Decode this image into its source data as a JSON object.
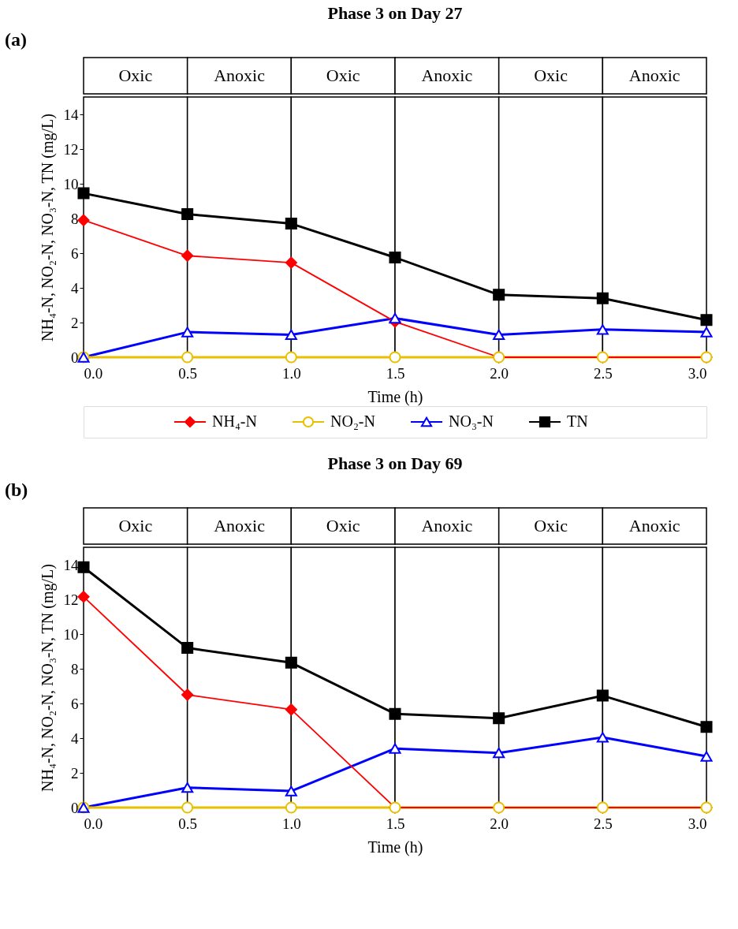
{
  "chart_data": [
    {
      "type": "line",
      "title": "Phase 3 on Day 27",
      "xlabel": "Time (h)",
      "ylabel": "NH₄-N, NO₂-N, NO₃-N, TN (mg/L)",
      "annotations": [
        "(a)"
      ],
      "x": [
        0,
        0.5,
        1.0,
        1.5,
        2.0,
        2.5,
        3.0
      ],
      "series": [
        {
          "name": "NH₄-N",
          "color": "#ff0000",
          "marker": "diamond",
          "values": [
            7.9,
            5.85,
            5.45,
            2.05,
            0,
            0,
            0
          ]
        },
        {
          "name": "NO₂-N",
          "color": "#e8c000",
          "marker": "circle",
          "values": [
            0,
            0,
            0,
            0,
            0,
            0,
            0
          ]
        },
        {
          "name": "NO₃-N",
          "color": "#0000ff",
          "marker": "triangle",
          "values": [
            0,
            1.45,
            1.3,
            2.25,
            1.3,
            1.6,
            1.45
          ]
        },
        {
          "name": "TN",
          "color": "#000000",
          "marker": "square",
          "values": [
            9.45,
            8.25,
            7.7,
            5.75,
            3.6,
            3.4,
            2.15
          ]
        }
      ],
      "xlim": [
        0,
        3
      ],
      "xticks": [
        {
          "value": 0,
          "label": "0.0"
        },
        {
          "value": 0.5,
          "label": "0.5"
        },
        {
          "value": 1,
          "label": "1.0"
        },
        {
          "value": 1.5,
          "label": "1.5"
        },
        {
          "value": 2,
          "label": "2.0"
        },
        {
          "value": 2.5,
          "label": "2.5"
        },
        {
          "value": 3,
          "label": "3.0"
        }
      ],
      "ylim": [
        0,
        15
      ],
      "yticks": [
        0,
        2,
        4,
        6,
        8,
        10,
        12,
        14
      ],
      "bands": [
        {
          "axis": "x",
          "from": 0,
          "to": 0.5,
          "label": "Oxic"
        },
        {
          "axis": "x",
          "from": 0.5,
          "to": 1,
          "label": "Anoxic"
        },
        {
          "axis": "x",
          "from": 1,
          "to": 1.5,
          "label": "Oxic"
        },
        {
          "axis": "x",
          "from": 1.5,
          "to": 2,
          "label": "Anoxic"
        },
        {
          "axis": "x",
          "from": 2,
          "to": 2.5,
          "label": "Oxic"
        },
        {
          "axis": "x",
          "from": 2.5,
          "to": 3,
          "label": "Anoxic"
        }
      ],
      "legend": "bottom"
    },
    {
      "type": "line",
      "title": "Phase 3 on Day 69",
      "xlabel": "Time (h)",
      "ylabel": "NH₄-N, NO₂-N, NO₃-N, TN (mg/L)",
      "annotations": [
        "(b)"
      ],
      "x": [
        0,
        0.5,
        1.0,
        1.5,
        2.0,
        2.5,
        3.0
      ],
      "series": [
        {
          "color": "#ff0000",
          "marker": "diamond",
          "values": [
            12.15,
            6.5,
            5.65,
            0,
            0,
            0,
            0
          ]
        },
        {
          "color": "#e8c000",
          "marker": "circle",
          "values": [
            0,
            0,
            0,
            0,
            0,
            0,
            0
          ]
        },
        {
          "color": "#0000ff",
          "marker": "triangle",
          "values": [
            0,
            1.15,
            0.95,
            3.4,
            3.15,
            4.05,
            2.95
          ]
        },
        {
          "color": "#000000",
          "marker": "square",
          "values": [
            13.85,
            9.2,
            8.35,
            5.4,
            5.15,
            6.45,
            4.65
          ]
        }
      ],
      "xlim": [
        0,
        3
      ],
      "xticks": [
        {
          "value": 0,
          "label": "0.0"
        },
        {
          "value": 0.5,
          "label": "0.5"
        },
        {
          "value": 1,
          "label": "1.0"
        },
        {
          "value": 1.5,
          "label": "1.5"
        },
        {
          "value": 2,
          "label": "2.0"
        },
        {
          "value": 2.5,
          "label": "2.5"
        },
        {
          "value": 3,
          "label": "3.0"
        }
      ],
      "ylim": [
        0,
        15
      ],
      "yticks": [
        0,
        2,
        4,
        6,
        8,
        10,
        12,
        14
      ],
      "bands": [
        {
          "axis": "x",
          "from": 0,
          "to": 0.5,
          "label": "Oxic"
        },
        {
          "axis": "x",
          "from": 0.5,
          "to": 1,
          "label": "Anoxic"
        },
        {
          "axis": "x",
          "from": 1,
          "to": 1.5,
          "label": "Oxic"
        },
        {
          "axis": "x",
          "from": 1.5,
          "to": 2,
          "label": "Anoxic"
        },
        {
          "axis": "x",
          "from": 2,
          "to": 2.5,
          "label": "Oxic"
        },
        {
          "axis": "x",
          "from": 2.5,
          "to": 3,
          "label": "Anoxic"
        }
      ]
    }
  ]
}
